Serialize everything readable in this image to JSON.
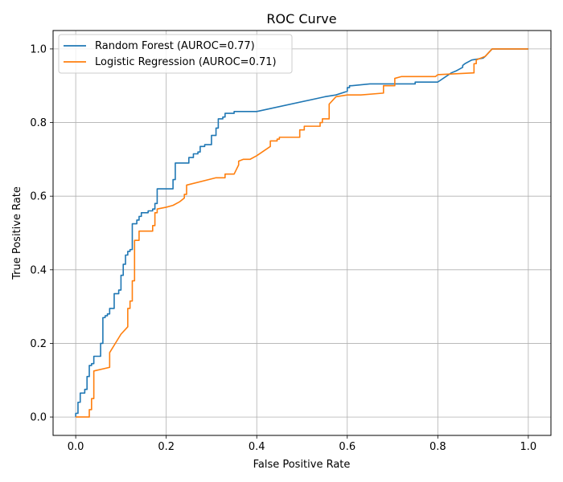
{
  "chart_data": {
    "type": "line",
    "title": "ROC Curve",
    "xlabel": "False Positive Rate",
    "ylabel": "True Positive Rate",
    "xlim": [
      -0.05,
      1.05
    ],
    "ylim": [
      -0.05,
      1.05
    ],
    "xticks": [
      0.0,
      0.2,
      0.4,
      0.6,
      0.8,
      1.0
    ],
    "yticks": [
      0.0,
      0.2,
      0.4,
      0.6,
      0.8,
      1.0
    ],
    "xtick_labels": [
      "0.0",
      "0.2",
      "0.4",
      "0.6",
      "0.8",
      "1.0"
    ],
    "ytick_labels": [
      "0.0",
      "0.2",
      "0.4",
      "0.6",
      "0.8",
      "1.0"
    ],
    "grid": true,
    "legend_position": "upper-left",
    "series": [
      {
        "name": "Random Forest (AUROC=0.77)",
        "color": "#1f77b4",
        "x": [
          0.0,
          0.0,
          0.005,
          0.005,
          0.01,
          0.01,
          0.02,
          0.02,
          0.025,
          0.025,
          0.03,
          0.03,
          0.035,
          0.035,
          0.04,
          0.04,
          0.055,
          0.055,
          0.06,
          0.06,
          0.065,
          0.065,
          0.07,
          0.07,
          0.075,
          0.075,
          0.085,
          0.085,
          0.095,
          0.095,
          0.1,
          0.1,
          0.105,
          0.105,
          0.11,
          0.11,
          0.115,
          0.115,
          0.12,
          0.12,
          0.125,
          0.125,
          0.135,
          0.135,
          0.14,
          0.14,
          0.145,
          0.145,
          0.16,
          0.16,
          0.17,
          0.17,
          0.175,
          0.175,
          0.18,
          0.18,
          0.19,
          0.19,
          0.215,
          0.215,
          0.22,
          0.22,
          0.225,
          0.225,
          0.25,
          0.25,
          0.26,
          0.26,
          0.27,
          0.27,
          0.275,
          0.275,
          0.285,
          0.285,
          0.3,
          0.3,
          0.31,
          0.31,
          0.315,
          0.315,
          0.325,
          0.325,
          0.33,
          0.33,
          0.35,
          0.35,
          0.4,
          0.55,
          0.575,
          0.6,
          0.6,
          0.605,
          0.605,
          0.61,
          0.65,
          0.75,
          0.75,
          0.8,
          0.83,
          0.84,
          0.855,
          0.855,
          0.86,
          0.86,
          0.875,
          0.875,
          0.9,
          0.9,
          0.905,
          0.905,
          0.92,
          1.0
        ],
        "y": [
          0.0,
          0.01,
          0.01,
          0.04,
          0.04,
          0.065,
          0.065,
          0.075,
          0.075,
          0.11,
          0.11,
          0.14,
          0.14,
          0.145,
          0.145,
          0.165,
          0.165,
          0.2,
          0.2,
          0.27,
          0.27,
          0.275,
          0.275,
          0.28,
          0.28,
          0.295,
          0.295,
          0.335,
          0.335,
          0.345,
          0.345,
          0.385,
          0.385,
          0.415,
          0.415,
          0.44,
          0.44,
          0.45,
          0.45,
          0.455,
          0.455,
          0.525,
          0.525,
          0.535,
          0.535,
          0.545,
          0.545,
          0.555,
          0.555,
          0.56,
          0.56,
          0.565,
          0.565,
          0.58,
          0.58,
          0.62,
          0.62,
          0.62,
          0.62,
          0.645,
          0.645,
          0.69,
          0.69,
          0.69,
          0.69,
          0.705,
          0.705,
          0.715,
          0.715,
          0.72,
          0.72,
          0.735,
          0.735,
          0.74,
          0.74,
          0.765,
          0.765,
          0.785,
          0.785,
          0.81,
          0.81,
          0.815,
          0.815,
          0.825,
          0.825,
          0.83,
          0.83,
          0.87,
          0.875,
          0.885,
          0.895,
          0.895,
          0.9,
          0.9,
          0.905,
          0.905,
          0.91,
          0.91,
          0.935,
          0.94,
          0.95,
          0.955,
          0.96,
          0.96,
          0.97,
          0.97,
          0.975,
          0.975,
          0.98,
          0.98,
          1.0,
          1.0
        ]
      },
      {
        "name": "Logistic Regression (AUROC=0.71)",
        "color": "#ff7f0e",
        "x": [
          0.0,
          0.03,
          0.03,
          0.035,
          0.035,
          0.04,
          0.04,
          0.075,
          0.075,
          0.1,
          0.115,
          0.115,
          0.12,
          0.12,
          0.125,
          0.125,
          0.13,
          0.13,
          0.14,
          0.14,
          0.17,
          0.17,
          0.175,
          0.175,
          0.18,
          0.18,
          0.2,
          0.215,
          0.23,
          0.24,
          0.24,
          0.245,
          0.245,
          0.31,
          0.33,
          0.33,
          0.35,
          0.36,
          0.36,
          0.37,
          0.385,
          0.4,
          0.43,
          0.43,
          0.445,
          0.445,
          0.45,
          0.45,
          0.465,
          0.495,
          0.495,
          0.505,
          0.505,
          0.54,
          0.54,
          0.545,
          0.545,
          0.56,
          0.56,
          0.575,
          0.6,
          0.63,
          0.68,
          0.68,
          0.705,
          0.705,
          0.72,
          0.795,
          0.8,
          0.88,
          0.88,
          0.885,
          0.885,
          0.905,
          0.92,
          1.0
        ],
        "y": [
          0.0,
          0.0,
          0.02,
          0.02,
          0.05,
          0.05,
          0.125,
          0.135,
          0.175,
          0.225,
          0.245,
          0.295,
          0.295,
          0.315,
          0.315,
          0.37,
          0.37,
          0.48,
          0.48,
          0.505,
          0.505,
          0.52,
          0.52,
          0.555,
          0.555,
          0.565,
          0.57,
          0.575,
          0.585,
          0.595,
          0.605,
          0.605,
          0.63,
          0.65,
          0.65,
          0.66,
          0.66,
          0.685,
          0.695,
          0.7,
          0.7,
          0.71,
          0.735,
          0.75,
          0.75,
          0.755,
          0.755,
          0.76,
          0.76,
          0.76,
          0.78,
          0.78,
          0.79,
          0.79,
          0.8,
          0.8,
          0.81,
          0.81,
          0.85,
          0.87,
          0.875,
          0.875,
          0.88,
          0.9,
          0.9,
          0.92,
          0.925,
          0.925,
          0.93,
          0.935,
          0.96,
          0.96,
          0.97,
          0.98,
          1.0,
          1.0
        ]
      }
    ]
  }
}
